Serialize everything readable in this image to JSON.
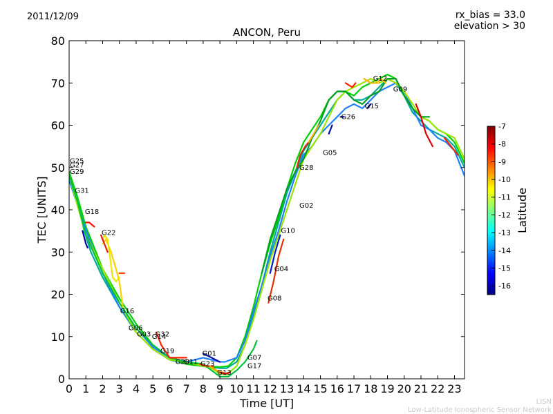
{
  "header": {
    "date": "2011/12/09",
    "rx_bias": "rx_bias = 33.0",
    "elevation": "elevation > 30",
    "title": "ANCON, Peru"
  },
  "footer": {
    "network_short": "LISN",
    "network_long": "Low-Latitude Ionospheric Sensor Network"
  },
  "chart_data": {
    "type": "line",
    "title": "ANCON, Peru",
    "xlabel": "Time [UT]",
    "ylabel": "TEC [UNITS]",
    "xlim": [
      0,
      23.6
    ],
    "ylim": [
      0,
      80
    ],
    "xticks": [
      "0",
      "1",
      "2",
      "3",
      "4",
      "5",
      "6",
      "7",
      "8",
      "9",
      "10",
      "11",
      "12",
      "13",
      "14",
      "15",
      "16",
      "17",
      "18",
      "19",
      "20",
      "21",
      "22",
      "23"
    ],
    "yticks": [
      "0",
      "10",
      "20",
      "30",
      "40",
      "50",
      "60",
      "70",
      "80"
    ],
    "colorbar": {
      "label": "Latitude",
      "range": [
        -16.5,
        -7
      ],
      "ticks": [
        "-7",
        "-8",
        "-9",
        "-10",
        "-11",
        "-12",
        "-13",
        "-14",
        "-15",
        "-16"
      ],
      "colormap": [
        "#00007f",
        "#0000ff",
        "#007fff",
        "#00ffff",
        "#7fff7f",
        "#ffff00",
        "#ff7f00",
        "#ff0000",
        "#7f0000"
      ]
    },
    "series": [
      {
        "name": "tec-arc-1",
        "color": "#00a8a0",
        "x": [
          0,
          0.5,
          0.9,
          1.3,
          2,
          3,
          4,
          5,
          6,
          7,
          8,
          9,
          9.4,
          10,
          10.5,
          11,
          11.5,
          12,
          12.5,
          13,
          13.5,
          14,
          14.5,
          15,
          15.5,
          16,
          16.5,
          17,
          17.5,
          18,
          18.5,
          19,
          19.5,
          20,
          20.5,
          21,
          21.5,
          22,
          22.5,
          23,
          23.6
        ],
        "values": [
          48,
          42,
          35,
          30,
          24,
          17,
          11,
          7,
          4.5,
          3.5,
          3,
          2.5,
          2.5,
          4,
          8,
          15,
          22,
          30,
          37,
          44,
          49,
          54,
          57,
          60,
          63,
          66,
          68,
          66,
          66,
          67,
          69,
          71,
          70,
          67,
          63,
          61,
          59,
          58,
          57,
          55,
          50
        ]
      },
      {
        "name": "tec-arc-2",
        "color": "#00d000",
        "x": [
          0,
          0.5,
          1,
          1.5,
          2,
          3,
          4,
          5,
          6,
          7,
          8,
          9,
          9.5,
          10,
          10.5,
          11,
          11.5,
          12,
          12.5,
          13,
          13.5,
          14,
          14.5,
          15,
          15.5,
          16,
          16.5,
          17,
          17.5,
          18,
          18.5,
          19,
          19.5,
          20,
          20.5,
          21,
          21.5,
          22,
          22.5,
          23,
          23.6
        ],
        "values": [
          49,
          43,
          36,
          31,
          26,
          19,
          13,
          8,
          5,
          3.5,
          3,
          2.8,
          3,
          5,
          10,
          17,
          25,
          32,
          38,
          45,
          51,
          56,
          59,
          62,
          66,
          68,
          68,
          67,
          69,
          70,
          71,
          72,
          71,
          67,
          64,
          62,
          61,
          59,
          58,
          56,
          51
        ]
      },
      {
        "name": "tec-arc-3",
        "color": "#2080ff",
        "x": [
          0,
          0.6,
          1.2,
          2,
          3,
          4,
          5,
          6,
          7,
          8,
          9,
          9.3,
          10,
          10.5,
          11,
          11.5,
          12,
          12.5,
          13,
          13.5,
          14,
          14.5,
          15,
          15.5,
          16,
          16.5,
          17,
          17.5,
          18,
          18.5,
          19,
          19.5,
          20,
          20.5,
          21,
          21.5,
          22,
          22.5,
          23,
          23.6
        ],
        "values": [
          47,
          40,
          33,
          25,
          17,
          12,
          7.5,
          5,
          4,
          5,
          4,
          4,
          5,
          9,
          16,
          22,
          29,
          35,
          42,
          48,
          53,
          55,
          58,
          60,
          62,
          64,
          65,
          64,
          66,
          68,
          69,
          70,
          68,
          64,
          60,
          59,
          57,
          56,
          54,
          48
        ]
      },
      {
        "name": "tec-arc-4",
        "color": "#9ae600",
        "x": [
          0,
          0.5,
          1,
          2,
          3,
          4,
          5,
          6,
          7,
          8,
          8.5,
          9,
          9.4,
          10,
          10.5,
          11,
          11.5,
          12,
          12.5,
          13,
          13.5,
          14,
          14.5,
          15,
          15.5,
          16,
          16.5,
          17,
          17.5,
          18,
          18.5,
          19,
          19.5,
          20,
          20.5,
          21,
          21.5,
          22,
          22.5,
          23,
          23.6
        ],
        "values": [
          48,
          41,
          34,
          26,
          18,
          11,
          7,
          4.5,
          4,
          3,
          2.5,
          1.2,
          1,
          3,
          8,
          14,
          21,
          28,
          34,
          40,
          46,
          52,
          55,
          58,
          62,
          66,
          68,
          69,
          70,
          71,
          70,
          71,
          70,
          68,
          65,
          62,
          61,
          59,
          58,
          57,
          52
        ]
      },
      {
        "name": "tec-arc-5",
        "color": "#00c040",
        "x": [
          0,
          0.5,
          1,
          2,
          3,
          4,
          5,
          6,
          7,
          8,
          9,
          9.5,
          10,
          10.5,
          11,
          11.2
        ],
        "values": [
          48,
          42,
          34,
          25,
          18,
          12,
          8,
          5,
          4,
          3.5,
          0.5,
          0.5,
          2,
          4,
          7,
          9
        ]
      },
      {
        "name": "tec-arc-6",
        "color": "#00a020",
        "x": [
          11.5,
          12,
          12.5,
          13,
          13.5,
          14,
          14.5,
          15,
          15.5,
          16,
          16.5,
          17,
          17.5,
          18,
          18.5,
          19,
          19.5,
          20,
          20.5,
          21,
          21.5
        ],
        "values": [
          25,
          33,
          39,
          45,
          49,
          52,
          57,
          61,
          66,
          68,
          68,
          66,
          65,
          67,
          68,
          71,
          71,
          67,
          64,
          62,
          62
        ]
      },
      {
        "name": "tec-arc-7",
        "color": "#ffd000",
        "x": [
          2,
          2.2,
          2.5,
          2.8,
          3,
          3.2
        ],
        "values": [
          32,
          33,
          30,
          26,
          23,
          17
        ]
      },
      {
        "name": "tec-arc-8",
        "color": "#e8e800",
        "x": [
          2,
          2.1,
          2.3,
          2.6,
          2.8,
          3
        ],
        "values": [
          33,
          34,
          33,
          24,
          23,
          24
        ]
      },
      {
        "name": "tec-arc-9",
        "color": "#ff1000",
        "x": [
          1,
          1.2,
          1.5
        ],
        "values": [
          37,
          37,
          36
        ]
      },
      {
        "name": "tec-arc-10",
        "color": "#e02000",
        "x": [
          1.9,
          2.1,
          2.3
        ],
        "values": [
          34,
          32,
          30
        ]
      },
      {
        "name": "tec-arc-11",
        "color": "#ff4000",
        "x": [
          3,
          3.3
        ],
        "values": [
          25,
          25
        ]
      },
      {
        "name": "tec-arc-12",
        "color": "#ff2000",
        "x": [
          5.2,
          5.5,
          6,
          6.5,
          7
        ],
        "values": [
          11,
          8,
          5,
          5,
          5
        ]
      },
      {
        "name": "tec-arc-13",
        "color": "#ff3000",
        "x": [
          7.8,
          8.2,
          8.6
        ],
        "values": [
          3.5,
          3,
          3
        ]
      },
      {
        "name": "tec-arc-14",
        "color": "#ffa000",
        "x": [
          8.4,
          8.8,
          9.2
        ],
        "values": [
          3,
          2,
          1.5
        ]
      },
      {
        "name": "tec-arc-15",
        "color": "#e00000",
        "x": [
          9,
          9.3,
          9.6
        ],
        "values": [
          1.5,
          1.2,
          1.5
        ]
      },
      {
        "name": "tec-arc-16",
        "color": "#e03000",
        "x": [
          11.9,
          12.2,
          12.5,
          12.8
        ],
        "values": [
          18,
          23,
          29,
          33
        ]
      },
      {
        "name": "tec-arc-17",
        "color": "#e02000",
        "x": [
          13.6,
          13.8,
          14.1,
          14.3
        ],
        "values": [
          50,
          53,
          55,
          56
        ]
      },
      {
        "name": "tec-arc-18",
        "color": "#ffb000",
        "x": [
          14.3,
          14.6,
          14.9
        ],
        "values": [
          56,
          58,
          60
        ]
      },
      {
        "name": "tec-arc-19",
        "color": "#ff2000",
        "x": [
          16.5,
          16.9,
          17.1
        ],
        "values": [
          70,
          69,
          70
        ]
      },
      {
        "name": "tec-arc-20",
        "color": "#ffb000",
        "x": [
          17.6,
          18,
          18.4
        ],
        "values": [
          71,
          70,
          70
        ]
      },
      {
        "name": "tec-arc-21",
        "color": "#ffc000",
        "x": [
          18.4,
          18.6,
          18.9
        ],
        "values": [
          70,
          71,
          70
        ]
      },
      {
        "name": "tec-arc-22",
        "color": "#e00000",
        "x": [
          20.7,
          21,
          21.3,
          21.7
        ],
        "values": [
          65,
          62,
          58,
          55
        ]
      },
      {
        "name": "tec-arc-23",
        "color": "#ff2000",
        "x": [
          22.4,
          22.8,
          23.2
        ],
        "values": [
          57,
          55,
          53
        ]
      },
      {
        "name": "tec-arc-24",
        "color": "#0000a0",
        "x": [
          0.8,
          1,
          1.1
        ],
        "values": [
          35,
          32,
          31
        ]
      },
      {
        "name": "tec-arc-25",
        "color": "#0020c0",
        "x": [
          12,
          12.3,
          12.6
        ],
        "values": [
          25,
          30,
          34
        ]
      },
      {
        "name": "tec-arc-26",
        "color": "#0010a0",
        "x": [
          15.5,
          15.7
        ],
        "values": [
          58,
          60
        ]
      },
      {
        "name": "tec-arc-27",
        "color": "#000090",
        "x": [
          16.2,
          16.4
        ],
        "values": [
          62,
          62
        ]
      },
      {
        "name": "tec-arc-28",
        "color": "#0000a0",
        "x": [
          17.8,
          18
        ],
        "values": [
          64,
          65
        ]
      },
      {
        "name": "tec-arc-29",
        "color": "#0010b0",
        "x": [
          8,
          8.5,
          9
        ],
        "values": [
          6,
          5,
          4
        ]
      }
    ],
    "prn_labels": [
      {
        "label": "G25",
        "x": 0,
        "y": 51.5
      },
      {
        "label": "G27",
        "x": 0,
        "y": 50.5
      },
      {
        "label": "G29",
        "x": 0,
        "y": 49
      },
      {
        "label": "G31",
        "x": 0.3,
        "y": 44.5
      },
      {
        "label": "G18",
        "x": 0.9,
        "y": 39.5
      },
      {
        "label": "G22",
        "x": 1.9,
        "y": 34.5
      },
      {
        "label": "G16",
        "x": 3,
        "y": 16
      },
      {
        "label": "G06",
        "x": 3.5,
        "y": 12
      },
      {
        "label": "G03",
        "x": 4,
        "y": 10.5
      },
      {
        "label": "G32",
        "x": 5.1,
        "y": 10.5
      },
      {
        "label": "G14",
        "x": 4.9,
        "y": 10
      },
      {
        "label": "G19",
        "x": 5.4,
        "y": 6.5
      },
      {
        "label": "G01",
        "x": 7.9,
        "y": 6
      },
      {
        "label": "G20",
        "x": 6.3,
        "y": 4
      },
      {
        "label": "G11",
        "x": 6.8,
        "y": 4
      },
      {
        "label": "G23",
        "x": 7.8,
        "y": 3.5
      },
      {
        "label": "G13",
        "x": 8.8,
        "y": 1.5
      },
      {
        "label": "G07",
        "x": 10.6,
        "y": 5
      },
      {
        "label": "G17",
        "x": 10.6,
        "y": 3
      },
      {
        "label": "G08",
        "x": 11.8,
        "y": 19
      },
      {
        "label": "G04",
        "x": 12.2,
        "y": 26
      },
      {
        "label": "G10",
        "x": 12.6,
        "y": 35
      },
      {
        "label": "G02",
        "x": 13.7,
        "y": 41
      },
      {
        "label": "G28",
        "x": 13.7,
        "y": 50
      },
      {
        "label": "G05",
        "x": 15.1,
        "y": 53.5
      },
      {
        "label": "G26",
        "x": 16.2,
        "y": 62
      },
      {
        "label": "G15",
        "x": 17.6,
        "y": 64.5
      },
      {
        "label": "G12",
        "x": 18.1,
        "y": 71
      },
      {
        "label": "G09",
        "x": 19.3,
        "y": 68.5
      }
    ]
  }
}
